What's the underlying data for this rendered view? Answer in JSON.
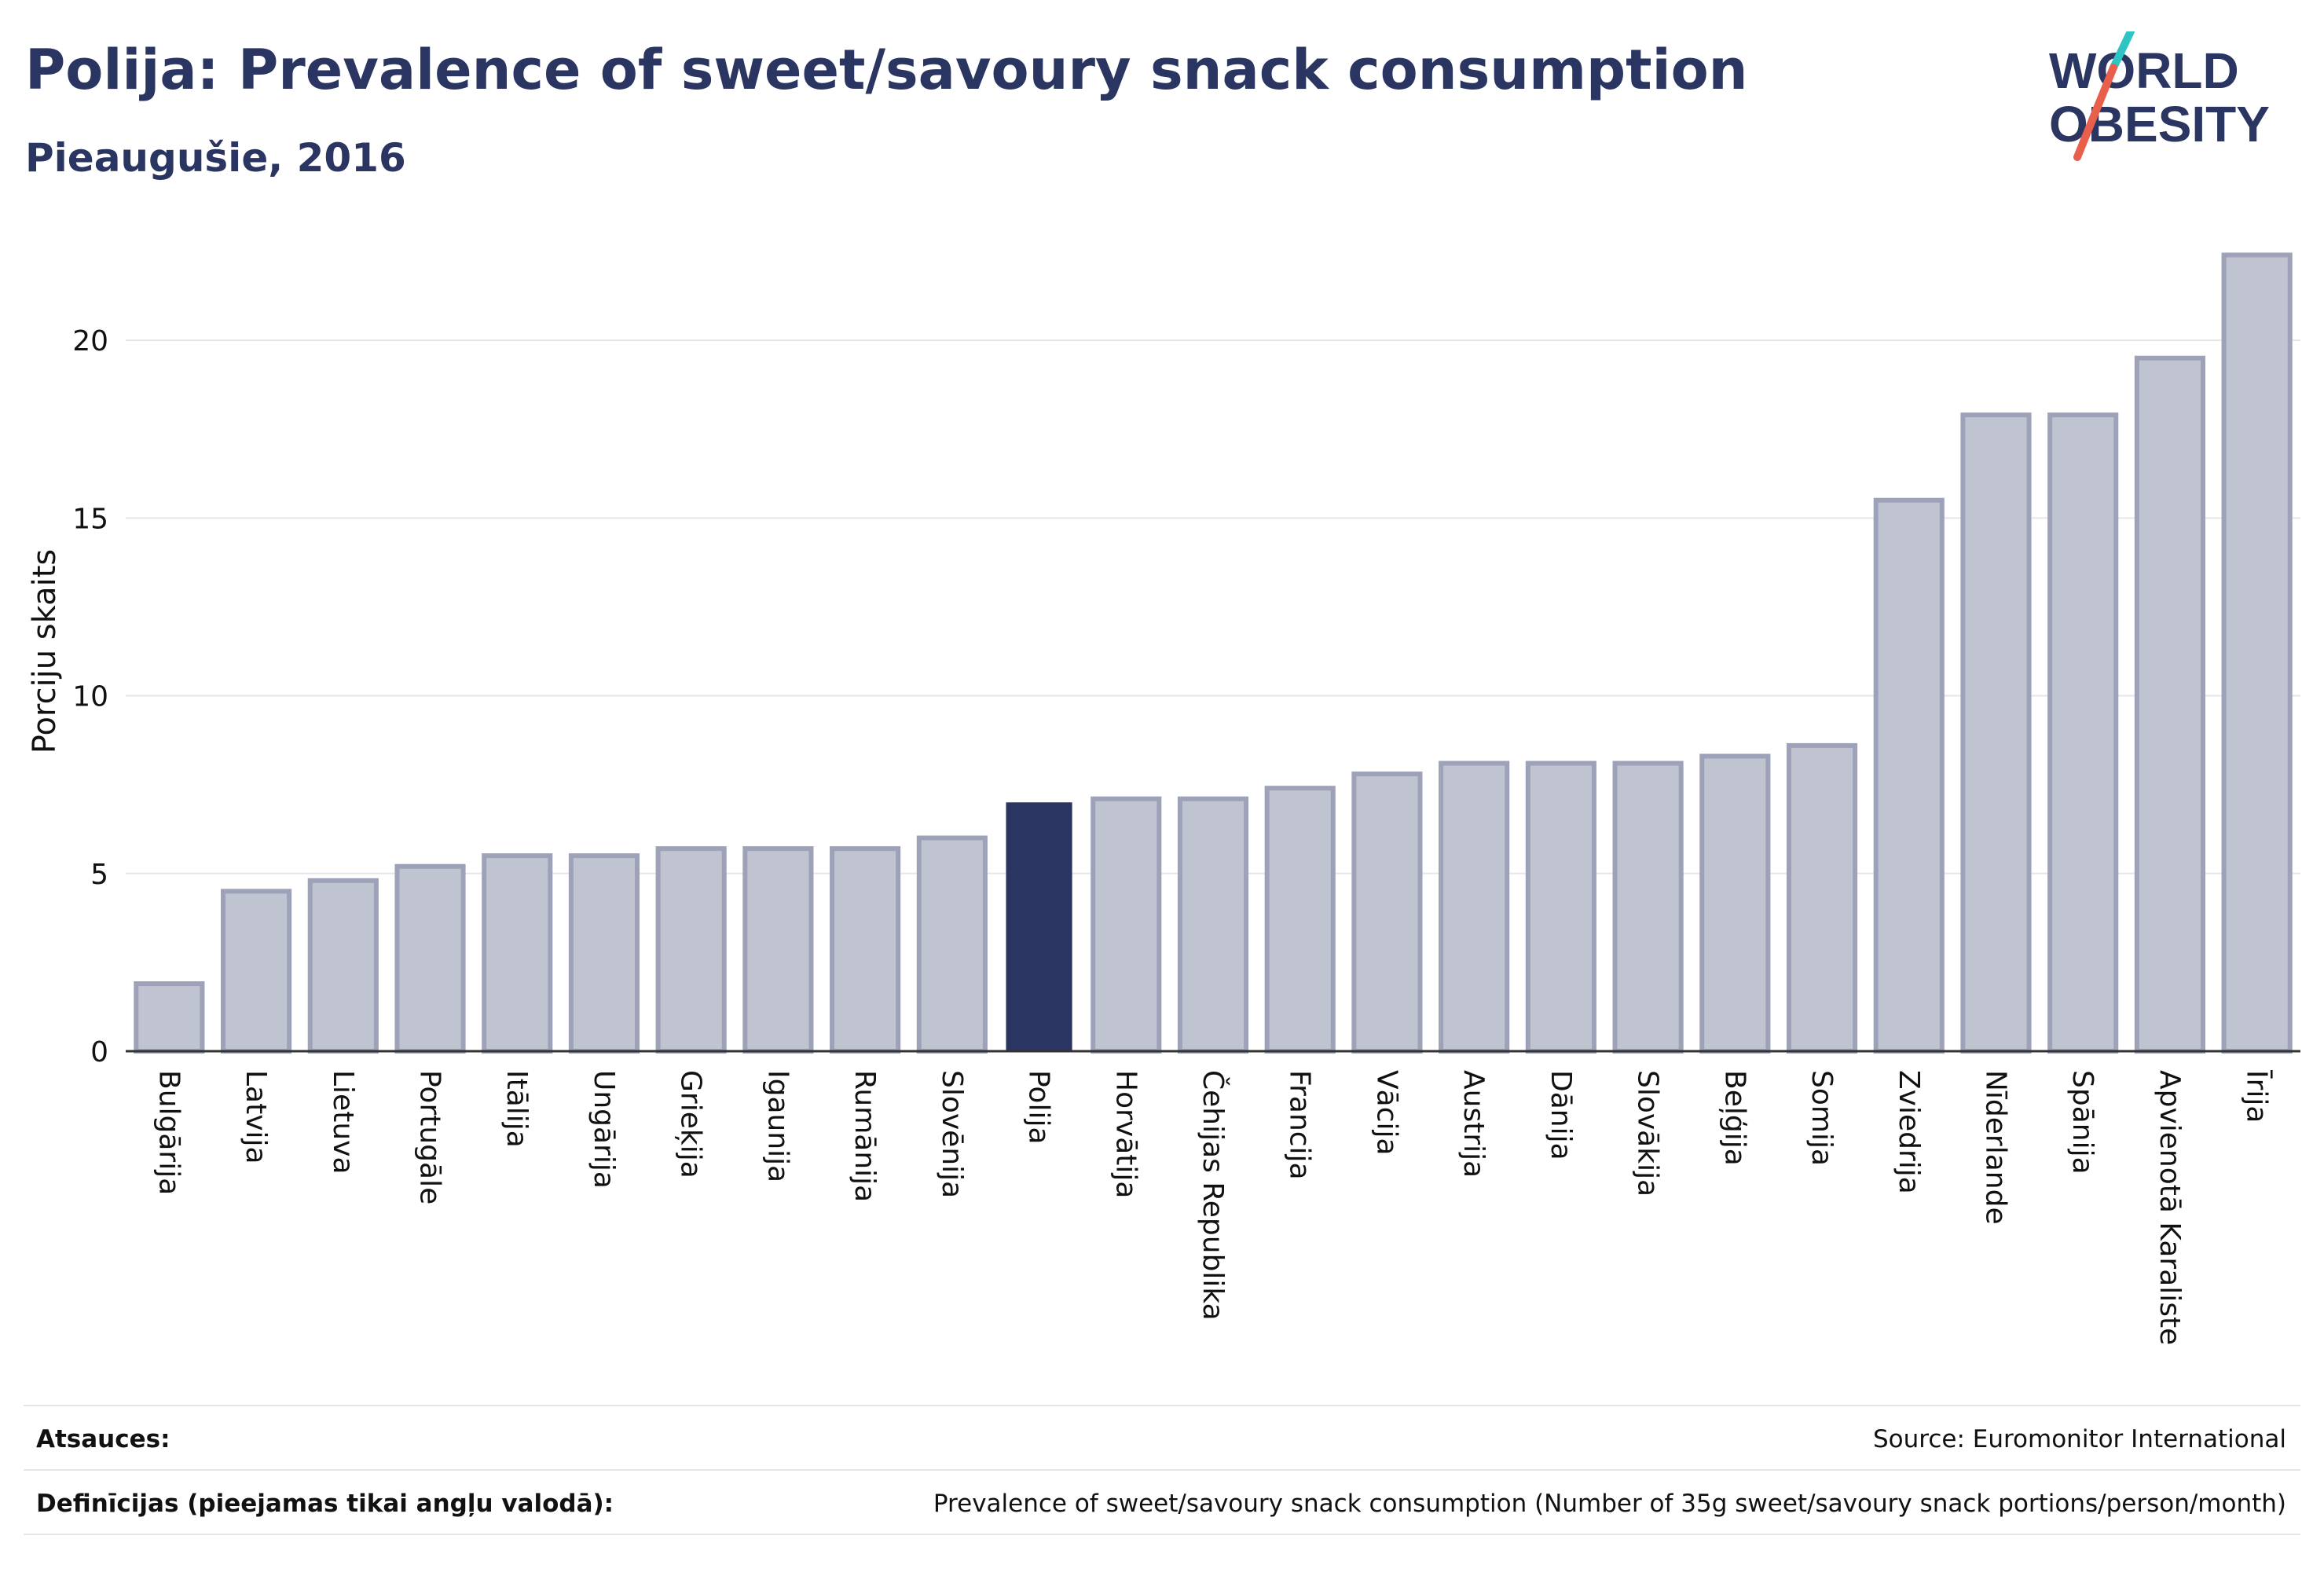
{
  "header": {
    "title": "Polija: Prevalence of sweet/savoury snack consumption",
    "subtitle": "Pieaugušie, 2016"
  },
  "logo": {
    "line1": "WORLD",
    "line2": "OBESITY",
    "colors": {
      "text": "#2a3561",
      "slash_teal": "#2ec4c4",
      "slash_red": "#e8604c"
    }
  },
  "chart_data": {
    "type": "bar",
    "ylabel": "Porciju skaits",
    "ylim": [
      0,
      22.5
    ],
    "yticks": [
      0,
      5,
      10,
      15,
      20
    ],
    "grid": true,
    "highlight": "Polija",
    "colors": {
      "bar": "#c0c3d0",
      "bar_border": "#9ea2b9",
      "highlight": "#2a3561"
    },
    "categories": [
      "Bulgārija",
      "Latvija",
      "Lietuva",
      "Portugāle",
      "Itālija",
      "Ungārija",
      "Grieķija",
      "Igaunija",
      "Rumānija",
      "Slovēnija",
      "Polija",
      "Horvātija",
      "Čehijas Republika",
      "Francija",
      "Vācija",
      "Austrija",
      "Dānija",
      "Slovākija",
      "Beļģija",
      "Somija",
      "Zviedrija",
      "Nīderlande",
      "Spānija",
      "Apvienotā Karaliste",
      "Īrija"
    ],
    "values": [
      1.9,
      4.5,
      4.8,
      5.2,
      5.5,
      5.5,
      5.7,
      5.7,
      5.7,
      6.0,
      7.0,
      7.1,
      7.1,
      7.4,
      7.8,
      8.1,
      8.1,
      8.1,
      8.3,
      8.6,
      15.5,
      17.9,
      17.9,
      19.5,
      22.4
    ]
  },
  "footer": {
    "sources_label": "Atsauces:",
    "sources_text": "Source: Euromonitor International",
    "definitions_label": "Definīcijas (pieejamas tikai angļu valodā):",
    "definitions_text": "Prevalence of sweet/savoury snack consumption (Number of 35g sweet/savoury snack portions/person/month)"
  }
}
